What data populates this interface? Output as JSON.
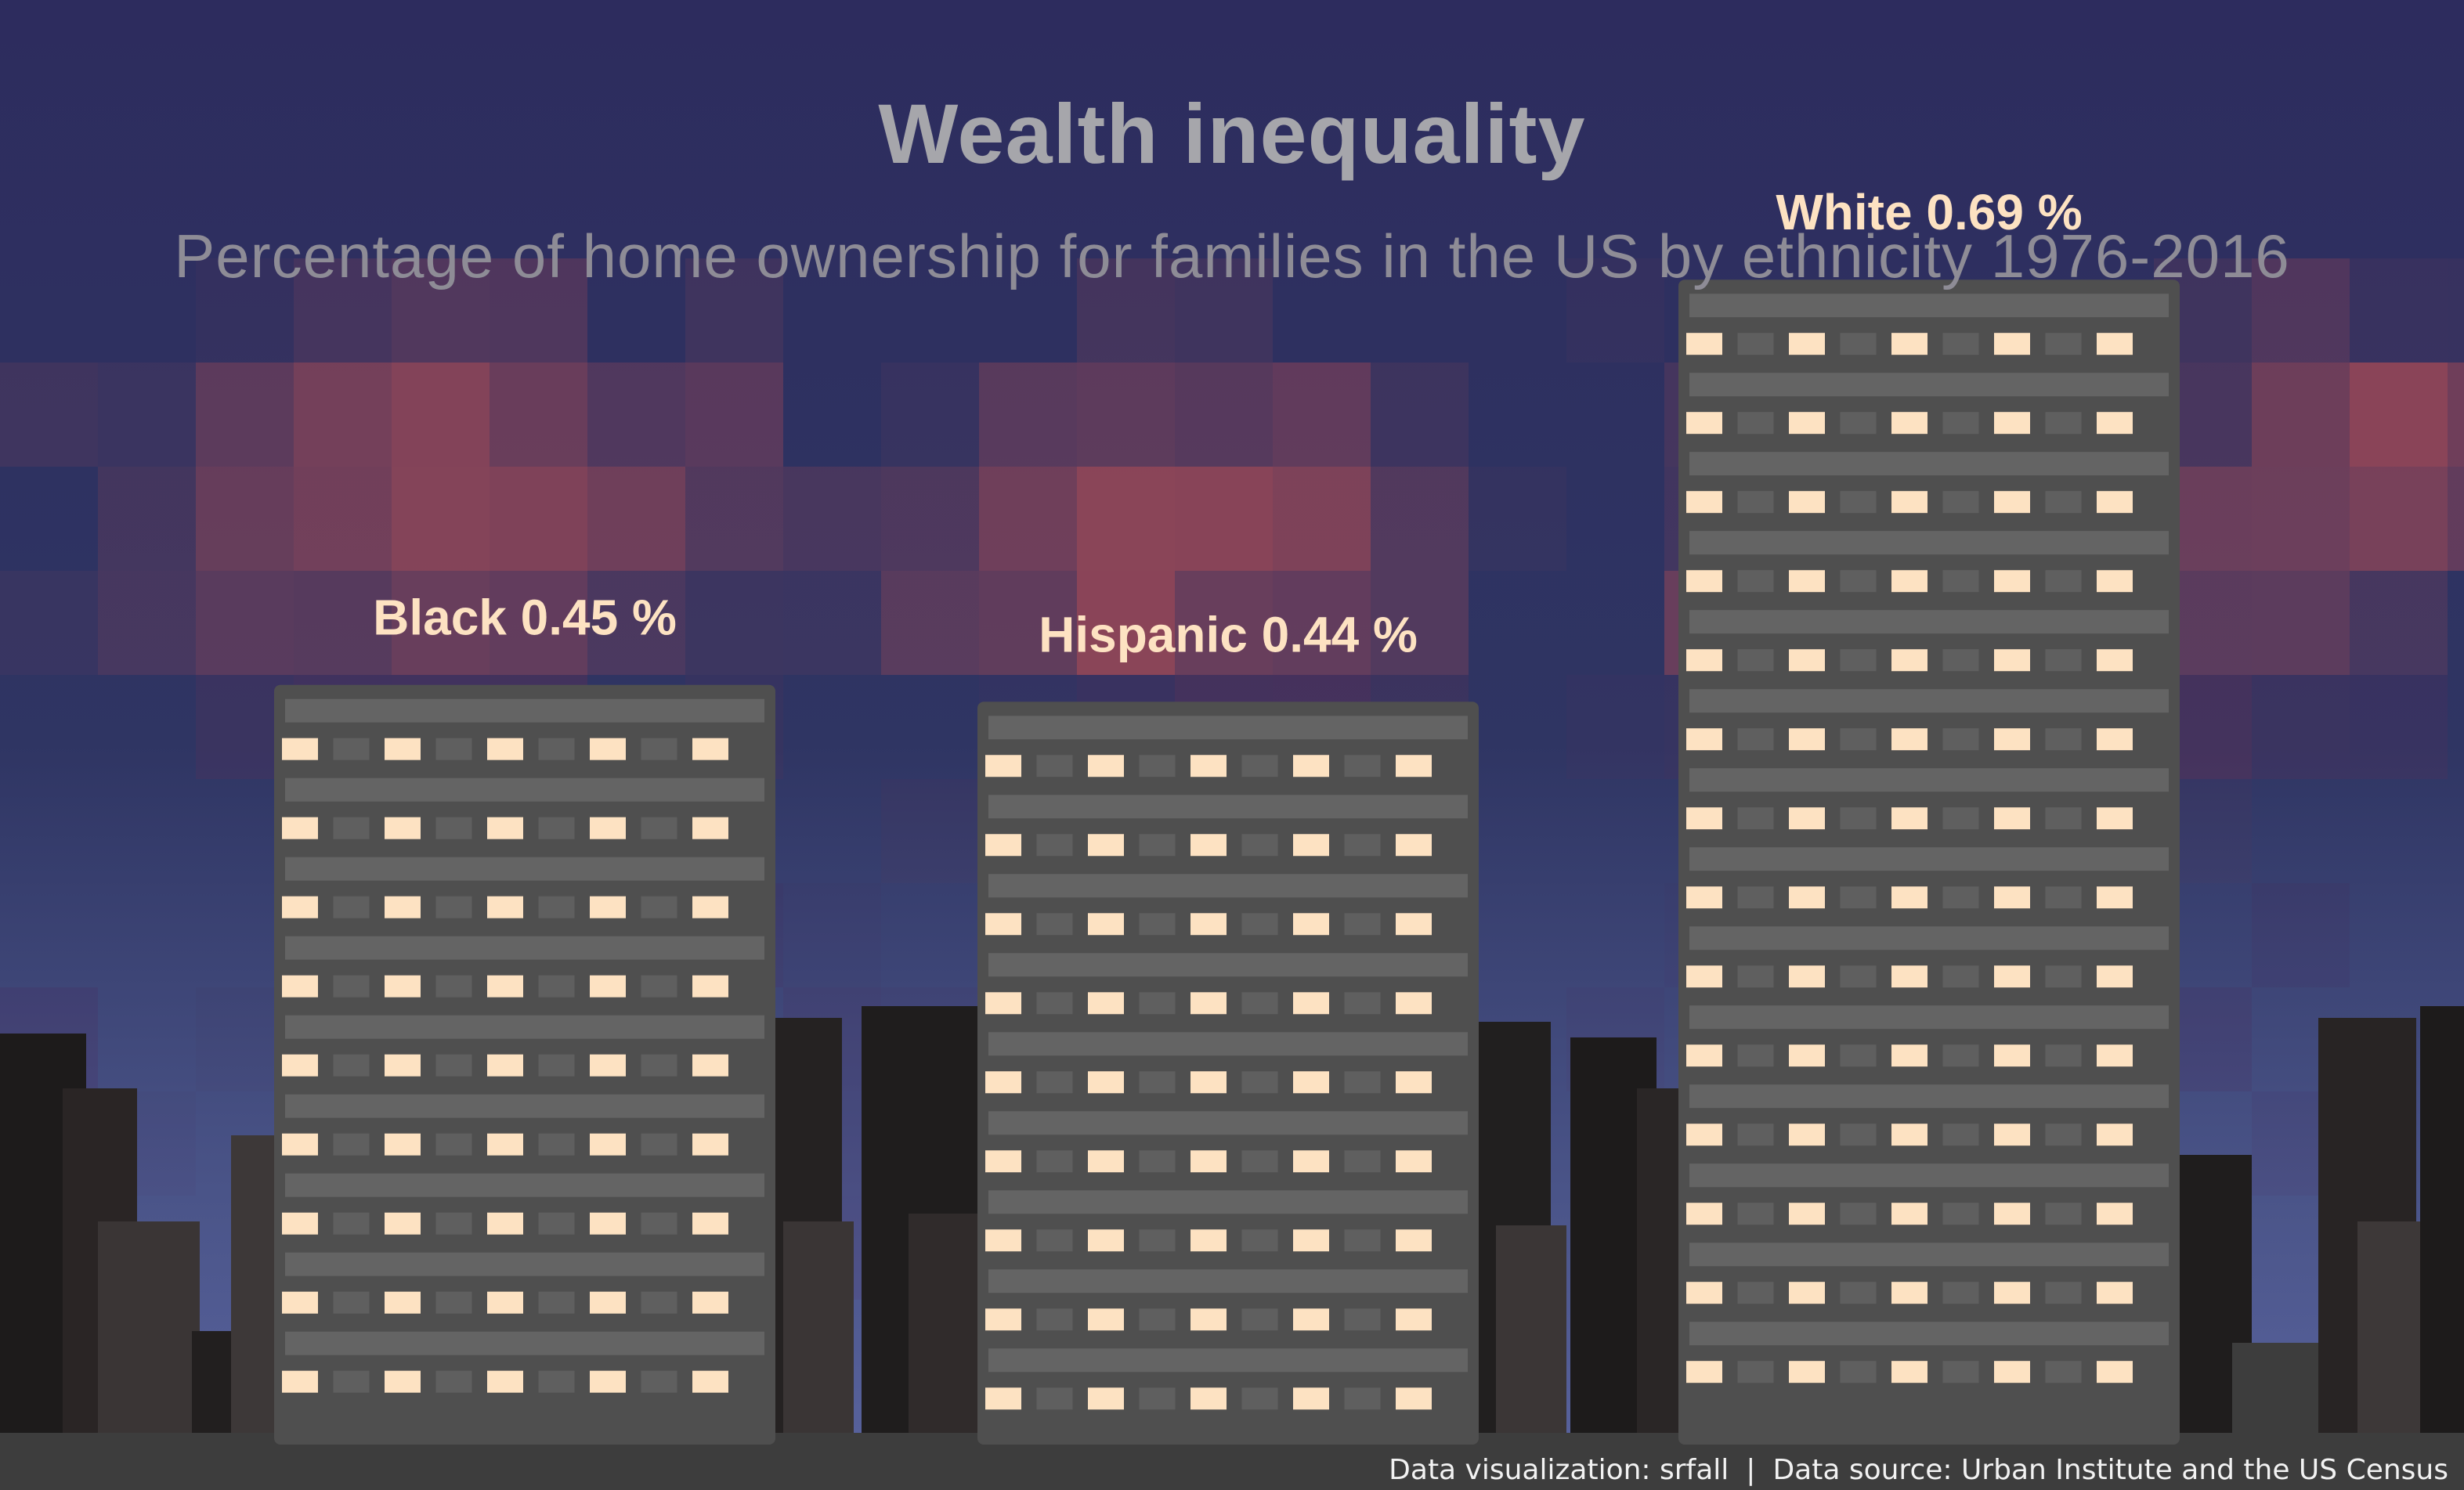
{
  "chart_data": {
    "type": "bar",
    "title": "Wealth inequality",
    "subtitle": "Percentage of home ownership for families in the US by ethnicity  1976-2016",
    "categories": [
      "Black",
      "Hispanic",
      "White"
    ],
    "values": [
      0.45,
      0.44,
      0.69
    ],
    "labels": [
      "Black 0.45 %",
      "Hispanic 0.44 %",
      "White 0.69 %"
    ],
    "ylim": [
      0,
      0.8
    ],
    "grid": false,
    "xlabel": "",
    "ylabel": ""
  },
  "footer": {
    "credit": "Data visualization: srfall",
    "separator": "|",
    "source": "Data source: Urban Institute and the US Census"
  },
  "colors": {
    "sky_top": "#2e2f5f",
    "glow": "#7a3a58",
    "building": "#4f4f4f",
    "floor_band": "#646464",
    "window_lit": "#fde2c2",
    "window_dark": "#5f5f5f",
    "label": "#fde2c2",
    "title": "#a6a6ab",
    "subtitle": "#8e8c96",
    "ground": "#3f3f3f",
    "skyline": "#1f1d1d"
  }
}
